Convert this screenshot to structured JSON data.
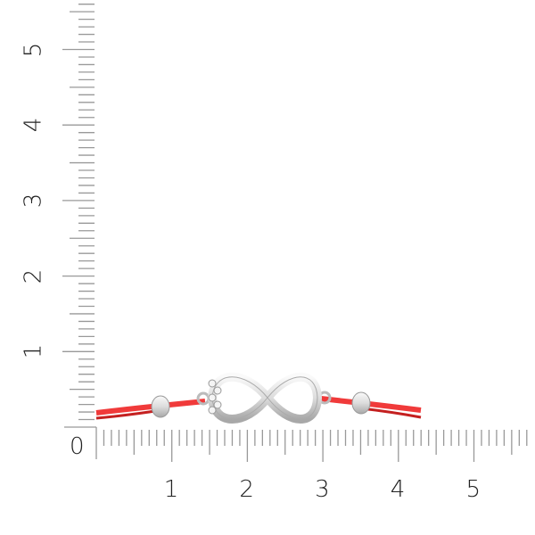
{
  "ruler": {
    "unit_px_note_free": true,
    "horizontal_labels": [
      "0",
      "1",
      "2",
      "3",
      "4",
      "5"
    ],
    "vertical_labels": [
      "1",
      "2",
      "3",
      "4",
      "5"
    ],
    "tick_color": "#999999"
  },
  "product": {
    "cord_color": "#f03a3a",
    "metal_color": "#e6e6e6"
  }
}
